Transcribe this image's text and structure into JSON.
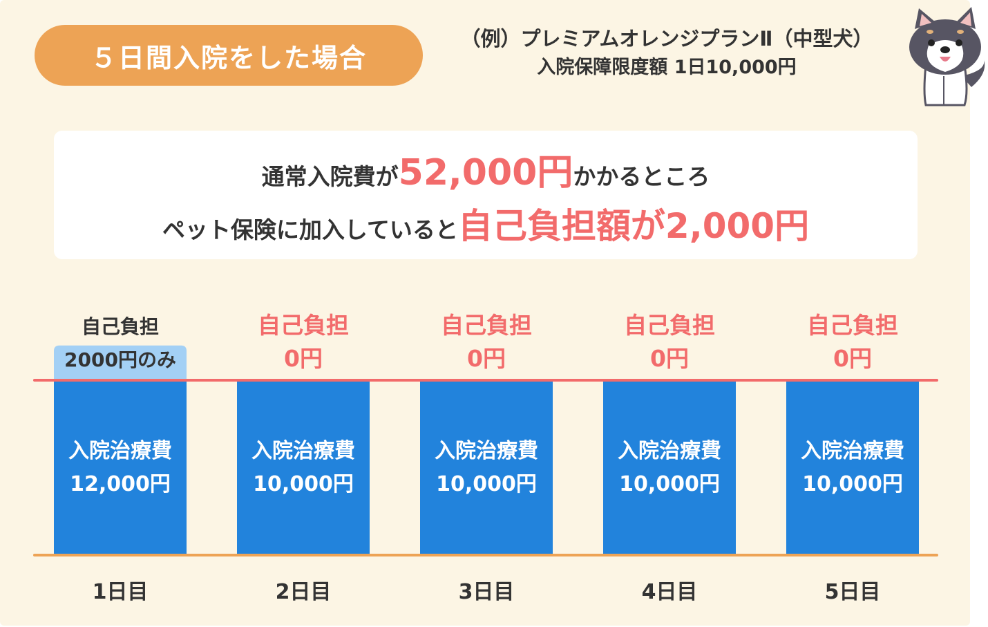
{
  "header": {
    "case_title": "５日間入院をした場合",
    "plan_line1": "（例）プレミアムオレンジプランⅡ（中型犬）",
    "plan_line2": "入院保障限度額 1日10,000円"
  },
  "summary": {
    "line1_text": "通常入院費が",
    "line1_amount": "52,000円",
    "line1_suffix": "かかるところ",
    "line2_text": "ペット保険に加入していると",
    "line2_amount": "自己負担額が2,000円"
  },
  "colors": {
    "background": "#fcf5e4",
    "pill": "#eda355",
    "bar": "#2283dc",
    "self_pay": "#a3d0f5",
    "limit_line": "#f26b6b",
    "baseline": "#eda355",
    "accent_text": "#f26b6b"
  },
  "icons": {
    "mascot": "shiba-dog-icon"
  },
  "chart_data": {
    "type": "bar",
    "categories": [
      "1日目",
      "2日目",
      "3日目",
      "4日目",
      "5日目"
    ],
    "bar_label": "入院治療費",
    "bar_value_labels": [
      "12,000円",
      "10,000円",
      "10,000円",
      "10,000円",
      "10,000円"
    ],
    "values": [
      12000,
      10000,
      10000,
      10000,
      10000
    ],
    "limit": 10000,
    "self_pay_values": [
      2000,
      0,
      0,
      0,
      0
    ],
    "self_pay_labels": [
      [
        "自己負担",
        "2000円のみ"
      ],
      [
        "自己負担",
        "0円"
      ],
      [
        "自己負担",
        "0円"
      ],
      [
        "自己負担",
        "0円"
      ],
      [
        "自己負担",
        "0円"
      ]
    ],
    "ylim": [
      0,
      12000
    ],
    "grid": false,
    "legend": "none"
  }
}
